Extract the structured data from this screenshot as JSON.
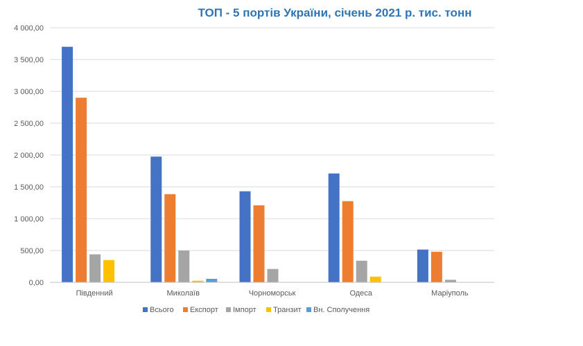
{
  "chart_data": {
    "type": "bar",
    "title": "ТОП - 5 портів України, січень 2021 р. тис. тонн",
    "categories": [
      "Південний",
      "Миколаїв",
      "Чорноморськ",
      "Одеса",
      "Маріуполь"
    ],
    "series": [
      {
        "name": "Всього",
        "color": "#4472c4",
        "values": [
          3700,
          1975,
          1430,
          1710,
          515
        ]
      },
      {
        "name": "Експорт",
        "color": "#ed7d31",
        "values": [
          2900,
          1385,
          1210,
          1275,
          480
        ]
      },
      {
        "name": "Імпорт",
        "color": "#a5a5a5",
        "values": [
          440,
          500,
          210,
          340,
          40
        ]
      },
      {
        "name": "Транзит",
        "color": "#ffc000",
        "values": [
          350,
          25,
          0,
          90,
          0
        ]
      },
      {
        "name": "Вн. Сполучення",
        "color": "#5b9bd5",
        "values": [
          0,
          55,
          0,
          0,
          0
        ]
      }
    ],
    "yticks": [
      "0,00",
      "500,00",
      "1 000,00",
      "1 500,00",
      "2 000,00",
      "2 500,00",
      "3 000,00",
      "3 500,00",
      "4 000,00"
    ],
    "ylim": [
      0,
      4000
    ],
    "grid": true,
    "legend_position": "bottom"
  }
}
